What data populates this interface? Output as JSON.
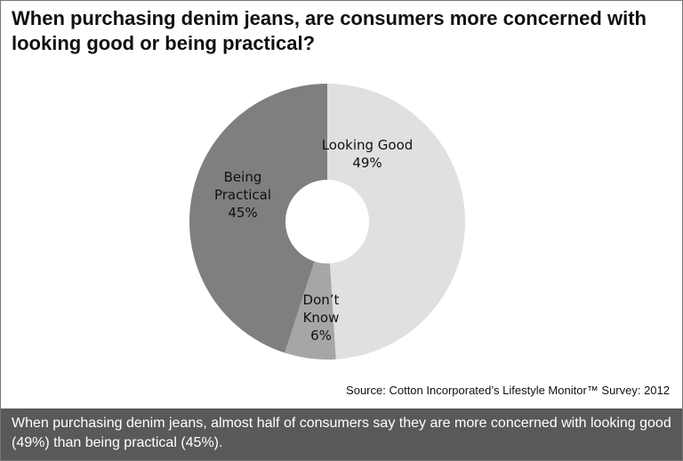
{
  "chart_data": {
    "type": "donut",
    "title": "When purchasing denim jeans, are consumers more concerned with looking good or being practical?",
    "categories": [
      "Looking Good",
      "Don’t Know",
      "Being Practical"
    ],
    "values": [
      49,
      6,
      45
    ],
    "value_labels": [
      "49%",
      "6%",
      "45%"
    ],
    "colors": [
      "#e0e0e0",
      "#a6a6a6",
      "#7f7f7f"
    ],
    "source": "Source: Cotton Incorporated’s Lifestyle Monitor™ Survey: 2012",
    "caption": "When purchasing denim jeans, almost half of consumers say they are more concerned with looking good (49%) than being practical (45%)."
  }
}
